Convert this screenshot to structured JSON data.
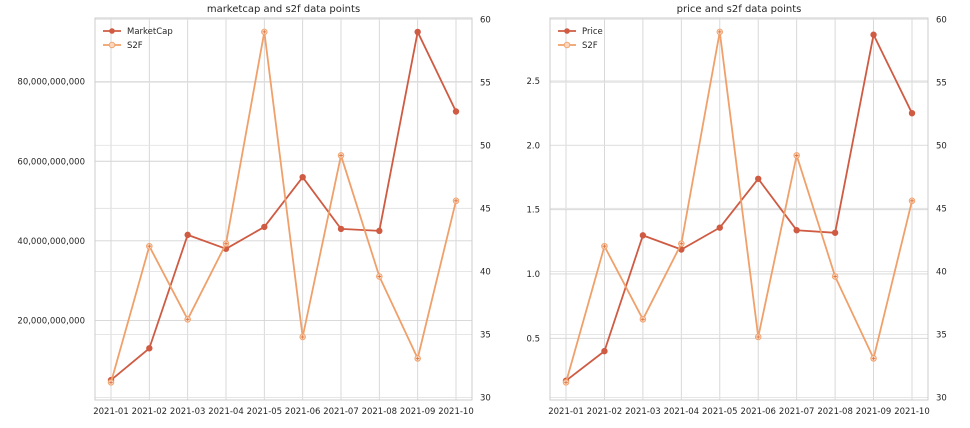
{
  "chart_data": [
    {
      "type": "line",
      "title": "marketcap and s2f data points",
      "categories": [
        "2021-01",
        "2021-02",
        "2021-03",
        "2021-04",
        "2021-05",
        "2021-06",
        "2021-07",
        "2021-08",
        "2021-09",
        "2021-10"
      ],
      "ylim_left": [
        0,
        96000000000
      ],
      "ylim_right": [
        29.8,
        60.1
      ],
      "left_ticks": [
        20000000000,
        40000000000,
        60000000000,
        80000000000
      ],
      "left_tick_labels": [
        "20,000,000,000",
        "40,000,000,000",
        "60,000,000,000",
        "80,000,000,000"
      ],
      "right_ticks": [
        30,
        35,
        40,
        45,
        50,
        55,
        60
      ],
      "right_tick_labels": [
        "30",
        "35",
        "40",
        "45",
        "50",
        "55",
        "60"
      ],
      "grid": true,
      "legend_position": "top-left",
      "series": [
        {
          "name": "MarketCap",
          "axis": "left",
          "color": "#cf5b43",
          "values": [
            5000000000,
            13000000000,
            41500000000,
            38000000000,
            43500000000,
            56000000000,
            43000000000,
            42500000000,
            92500000000,
            72500000000
          ]
        },
        {
          "name": "S2F",
          "axis": "right",
          "color": "#f0a06a",
          "values": [
            31.2,
            42.0,
            36.2,
            42.2,
            59.0,
            34.8,
            49.2,
            39.6,
            33.1,
            45.6
          ]
        }
      ]
    },
    {
      "type": "line",
      "title": "price and s2f data points",
      "categories": [
        "2021-01",
        "2021-02",
        "2021-03",
        "2021-04",
        "2021-05",
        "2021-06",
        "2021-07",
        "2021-08",
        "2021-09",
        "2021-10"
      ],
      "ylim_left": [
        0.02,
        2.99
      ],
      "ylim_right": [
        29.8,
        60.1
      ],
      "left_ticks": [
        0.5,
        1.0,
        1.5,
        2.0,
        2.5
      ],
      "left_tick_labels": [
        "0.5",
        "1.0",
        "1.5",
        "2.0",
        "2.5"
      ],
      "right_ticks": [
        30,
        35,
        40,
        45,
        50,
        55,
        60
      ],
      "right_tick_labels": [
        "30",
        "35",
        "40",
        "45",
        "50",
        "55",
        "60"
      ],
      "grid": true,
      "legend_position": "top-left",
      "series": [
        {
          "name": "Price",
          "axis": "left",
          "color": "#cf5b43",
          "values": [
            0.17,
            0.4,
            1.3,
            1.19,
            1.36,
            1.74,
            1.34,
            1.32,
            2.86,
            2.25
          ]
        },
        {
          "name": "S2F",
          "axis": "right",
          "color": "#f0a06a",
          "values": [
            31.2,
            42.0,
            36.2,
            42.2,
            59.0,
            34.8,
            49.2,
            39.6,
            33.1,
            45.6
          ]
        }
      ]
    }
  ]
}
